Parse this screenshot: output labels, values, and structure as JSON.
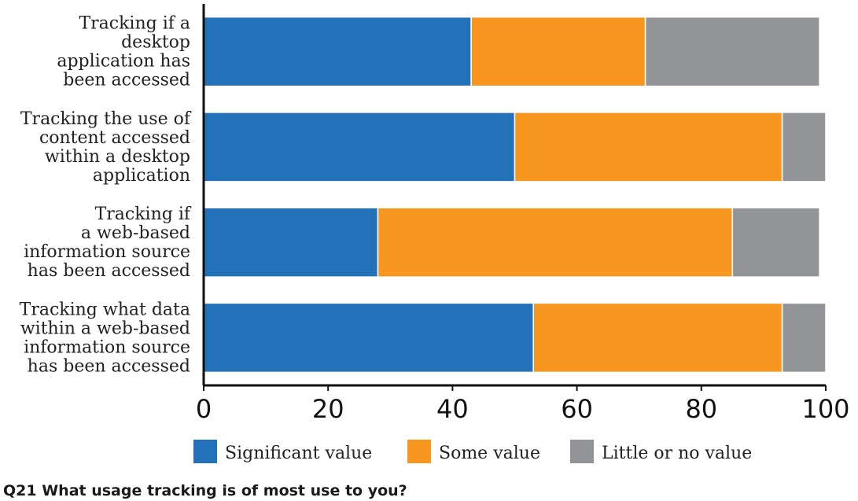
{
  "chart_data": {
    "type": "bar",
    "orientation": "horizontal",
    "stacked": true,
    "categories": [
      [
        "Tracking if a",
        "desktop",
        "application has",
        "been accessed"
      ],
      [
        "Tracking the use of",
        "content accessed",
        "within a desktop",
        "application"
      ],
      [
        "Tracking if",
        "a web-based",
        "information source",
        "has been accessed"
      ],
      [
        "Tracking what data",
        "within a web-based",
        "information source",
        "has been accessed"
      ]
    ],
    "series": [
      {
        "name": "Significant value",
        "color": "#2271b9",
        "values": [
          43,
          50,
          28,
          53
        ]
      },
      {
        "name": "Some value",
        "color": "#f7971f",
        "values": [
          28,
          43,
          57,
          40
        ]
      },
      {
        "name": "Little or no value",
        "color": "#929497",
        "values": [
          28,
          7,
          14,
          7
        ]
      }
    ],
    "xlim": [
      0,
      100
    ],
    "xticks": [
      0,
      20,
      40,
      60,
      80,
      100
    ],
    "grid": false,
    "legend_position": "bottom",
    "caption": "Q21 What usage tracking is of most use to you?"
  }
}
